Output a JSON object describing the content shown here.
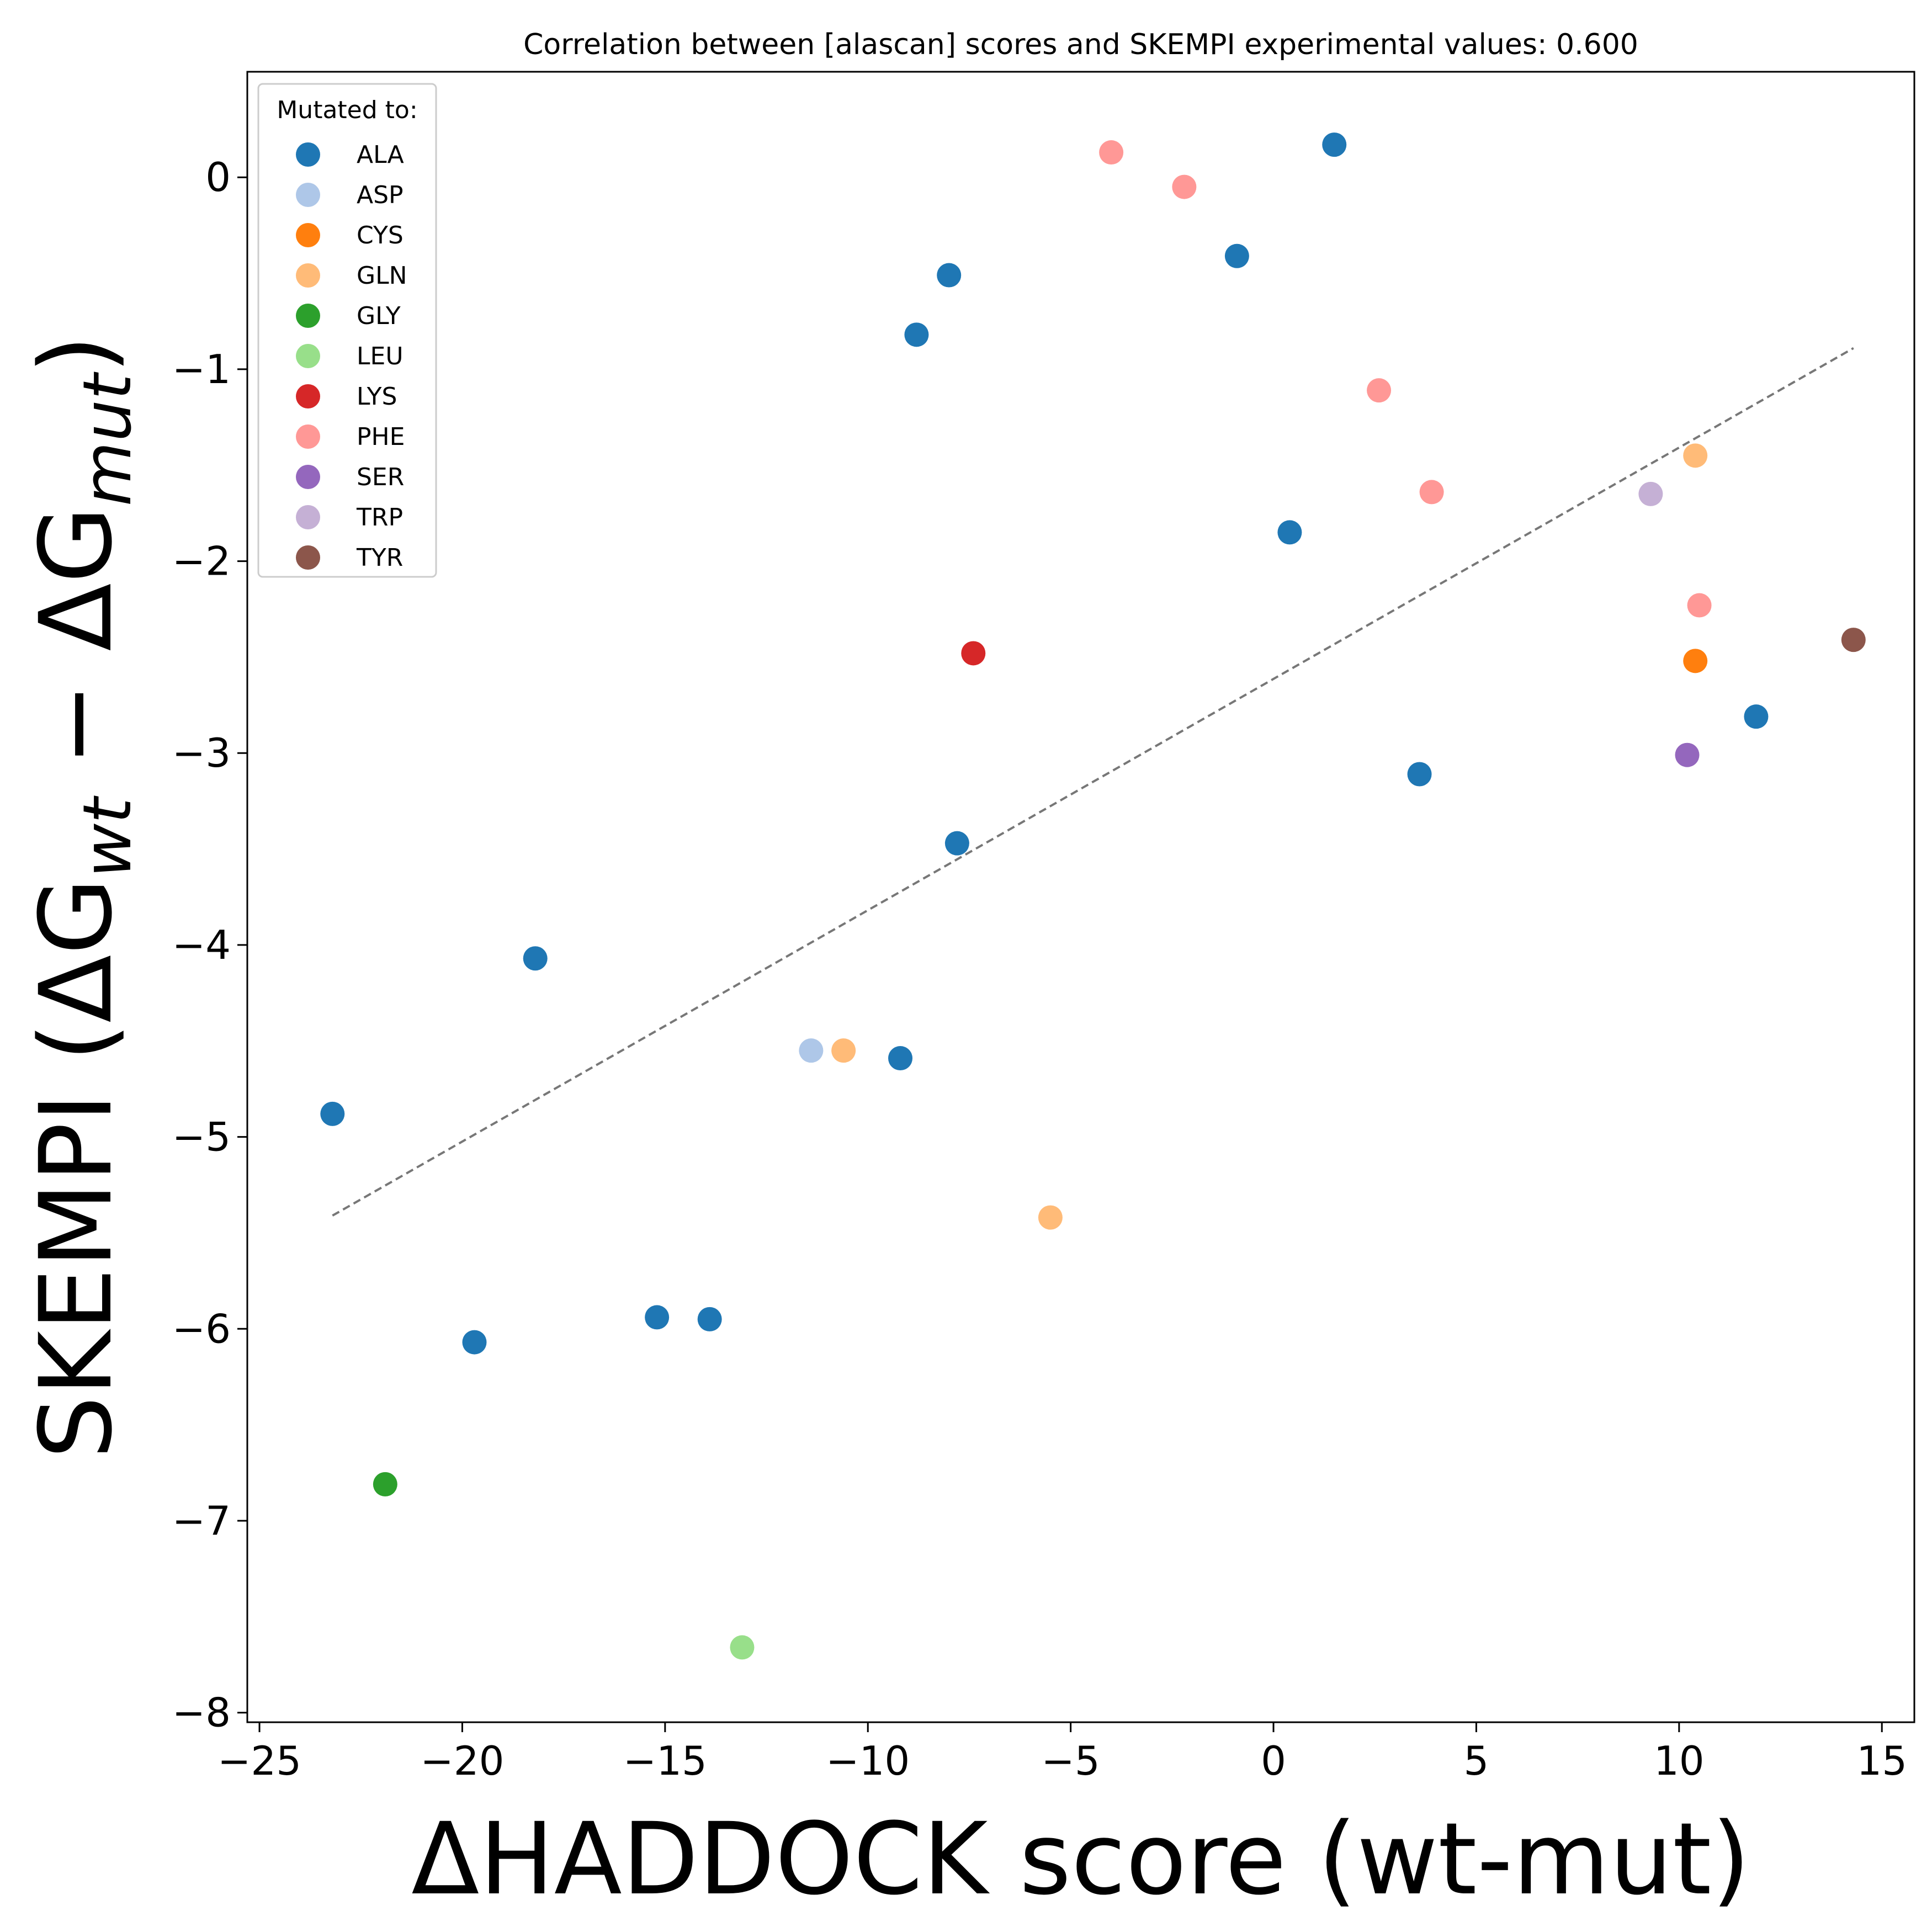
{
  "chart_data": {
    "type": "scatter",
    "title": "Correlation between [alascan] scores and SKEMPI experimental values: 0.600",
    "xlabel": "ΔHADDOCK score (wt-mut)",
    "ylabel": {
      "prefix": "SKEMPI (ΔG",
      "sub1": "wt",
      "middle": " − ΔG",
      "sub2": "mut",
      "suffix": ")"
    },
    "xlim": [
      -25.3,
      15.8
    ],
    "ylim": [
      -8.05,
      0.55
    ],
    "xticks": [
      -25,
      -20,
      -15,
      -10,
      -5,
      0,
      5,
      10,
      15
    ],
    "yticks": [
      0,
      -1,
      -2,
      -3,
      -4,
      -5,
      -6,
      -7,
      -8
    ],
    "grid": false,
    "legend": {
      "title": "Mutated to:",
      "placement": "top-left"
    },
    "fit_line": {
      "x": [
        -23.2,
        14.3
      ],
      "y": [
        -5.41,
        -0.89
      ],
      "style": "dashed",
      "color": "#777777"
    },
    "series": [
      {
        "name": "ALA",
        "color": "#1f77b4",
        "points": [
          [
            1.5,
            0.17
          ],
          [
            -0.9,
            -0.41
          ],
          [
            -8.0,
            -0.51
          ],
          [
            -8.8,
            -0.82
          ],
          [
            0.4,
            -1.85
          ],
          [
            3.6,
            -3.11
          ],
          [
            11.9,
            -2.81
          ],
          [
            -7.8,
            -3.47
          ],
          [
            -18.2,
            -4.07
          ],
          [
            -23.2,
            -4.88
          ],
          [
            -9.2,
            -4.59
          ],
          [
            -19.7,
            -6.07
          ],
          [
            -15.2,
            -5.94
          ],
          [
            -13.9,
            -5.95
          ]
        ]
      },
      {
        "name": "ASP",
        "color": "#aec7e8",
        "points": [
          [
            -11.4,
            -4.55
          ]
        ]
      },
      {
        "name": "CYS",
        "color": "#ff7f0e",
        "points": [
          [
            10.4,
            -2.52
          ]
        ]
      },
      {
        "name": "GLN",
        "color": "#ffbb78",
        "points": [
          [
            10.4,
            -1.45
          ],
          [
            -10.6,
            -4.55
          ],
          [
            -5.5,
            -5.42
          ]
        ]
      },
      {
        "name": "GLY",
        "color": "#2ca02c",
        "points": [
          [
            -21.9,
            -6.81
          ]
        ]
      },
      {
        "name": "LEU",
        "color": "#98df8a",
        "points": [
          [
            -13.1,
            -7.66
          ]
        ]
      },
      {
        "name": "LYS",
        "color": "#d62728",
        "points": [
          [
            -7.4,
            -2.48
          ]
        ]
      },
      {
        "name": "PHE",
        "color": "#ff9896",
        "points": [
          [
            -4.0,
            0.13
          ],
          [
            -2.2,
            -0.05
          ],
          [
            2.6,
            -1.11
          ],
          [
            3.9,
            -1.64
          ],
          [
            10.5,
            -2.23
          ]
        ]
      },
      {
        "name": "SER",
        "color": "#9467bd",
        "points": [
          [
            10.2,
            -3.01
          ]
        ]
      },
      {
        "name": "TRP",
        "color": "#c5b0d5",
        "points": [
          [
            9.3,
            -1.65
          ]
        ]
      },
      {
        "name": "TYR",
        "color": "#8c564b",
        "points": [
          [
            14.3,
            -2.41
          ]
        ]
      }
    ]
  }
}
